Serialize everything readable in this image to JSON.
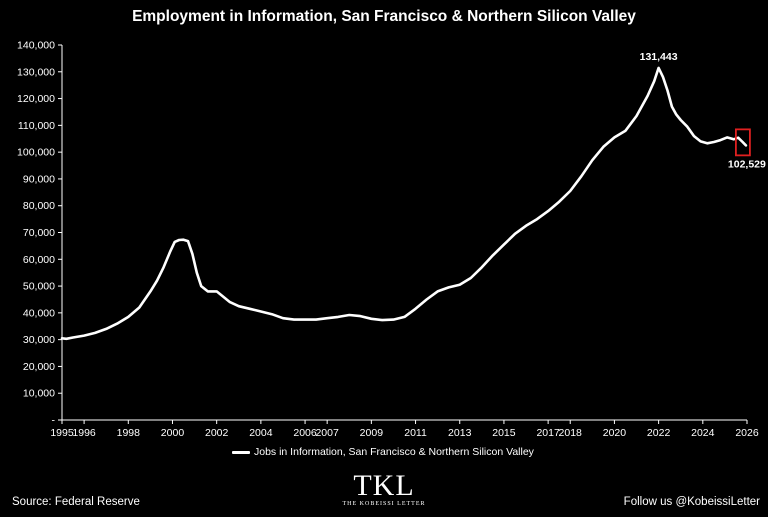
{
  "chart_data": {
    "type": "line",
    "title": "Employment in Information, San Francisco & Northern Silicon Valley",
    "xlabel": "",
    "ylabel": "",
    "ylim": [
      0,
      140000
    ],
    "xlim": [
      1995,
      2026
    ],
    "y_ticks": [
      0,
      10000,
      20000,
      30000,
      40000,
      50000,
      60000,
      70000,
      80000,
      90000,
      100000,
      110000,
      120000,
      130000,
      140000
    ],
    "y_tick_labels": [
      "-",
      "10,000",
      "20,000",
      "30,000",
      "40,000",
      "50,000",
      "60,000",
      "70,000",
      "80,000",
      "90,000",
      "100,000",
      "110,000",
      "120,000",
      "130,000",
      "140,000"
    ],
    "x_ticks": [
      1995,
      1996,
      1998,
      2000,
      2002,
      2004,
      2006,
      2007,
      2009,
      2011,
      2013,
      2015,
      2017,
      2018,
      2020,
      2022,
      2024,
      2026
    ],
    "x_tick_labels": [
      "1995",
      "1996",
      "1998",
      "2000",
      "2002",
      "2004",
      "2006",
      "2007",
      "2009",
      "2011",
      "2013",
      "2015",
      "2017",
      "2018",
      "2020",
      "2022",
      "2024",
      "2026"
    ],
    "grid": false,
    "legend_position": "bottom-center",
    "series": [
      {
        "name": "Jobs in Information, San Francisco & Northern Silicon Valley",
        "color": "#ffffff",
        "x": [
          1995.0,
          1995.2,
          1995.5,
          1996.0,
          1996.5,
          1997.0,
          1997.5,
          1998.0,
          1998.5,
          1999.0,
          1999.3,
          1999.6,
          1999.9,
          2000.1,
          2000.3,
          2000.5,
          2000.7,
          2000.9,
          2001.1,
          2001.3,
          2001.6,
          2002.0,
          2002.3,
          2002.6,
          2003.0,
          2003.5,
          2004.0,
          2004.5,
          2005.0,
          2005.5,
          2006.0,
          2006.5,
          2007.0,
          2007.5,
          2008.0,
          2008.5,
          2009.0,
          2009.5,
          2010.0,
          2010.5,
          2011.0,
          2011.5,
          2012.0,
          2012.5,
          2013.0,
          2013.5,
          2014.0,
          2014.5,
          2015.0,
          2015.5,
          2016.0,
          2016.5,
          2017.0,
          2017.5,
          2018.0,
          2018.5,
          2019.0,
          2019.5,
          2020.0,
          2020.5,
          2021.0,
          2021.5,
          2021.8,
          2022.0,
          2022.2,
          2022.4,
          2022.6,
          2022.8,
          2023.0,
          2023.3,
          2023.6,
          2023.9,
          2024.2,
          2024.5,
          2024.8,
          2025.1,
          2025.4,
          2025.6,
          2025.8,
          2025.95
        ],
        "values": [
          30500,
          30300,
          30800,
          31500,
          32500,
          34000,
          36000,
          38500,
          42000,
          48000,
          52000,
          57000,
          63000,
          66500,
          67200,
          67300,
          66800,
          62000,
          55000,
          50000,
          48000,
          48000,
          46000,
          44000,
          42500,
          41500,
          40500,
          39500,
          38000,
          37500,
          37500,
          37500,
          38000,
          38500,
          39200,
          38800,
          37800,
          37300,
          37500,
          38500,
          41500,
          45000,
          48000,
          49500,
          50500,
          53000,
          57000,
          61500,
          65500,
          69500,
          72500,
          75000,
          78000,
          81500,
          85500,
          91000,
          97000,
          102000,
          105500,
          108000,
          113500,
          121000,
          126500,
          131443,
          128000,
          123000,
          117000,
          114000,
          112000,
          109500,
          106000,
          104000,
          103300,
          103800,
          104500,
          105500,
          104800,
          105400,
          103800,
          102529
        ]
      }
    ],
    "annotations": [
      {
        "text": "131,443",
        "x": 2022.0,
        "y": 131443
      },
      {
        "text": "102,529",
        "x": 2025.95,
        "y": 102529
      }
    ],
    "highlight_box": {
      "x": 2025.95,
      "y": 102529,
      "color": "#e02020"
    }
  },
  "footer": {
    "source": "Source: Federal Reserve",
    "follow": "Follow us @KobeissiLetter",
    "logo_mark": "TKL",
    "logo_sub": "THE KOBEISSI LETTER"
  }
}
